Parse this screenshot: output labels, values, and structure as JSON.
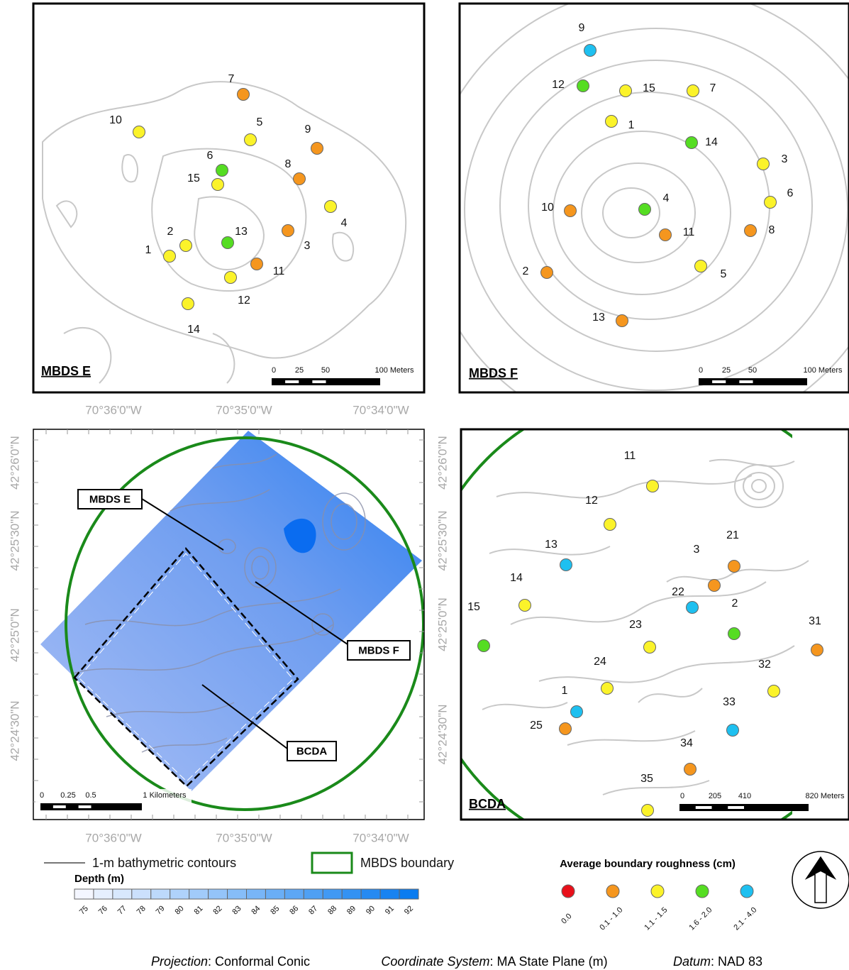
{
  "panels": [
    {
      "title": "MBDS E",
      "scale_labels": [
        "0",
        "25",
        "50",
        "100 Meters"
      ],
      "stations": [
        {
          "label": "7",
          "color": "#f5961e"
        },
        {
          "label": "10",
          "color": "#fbf32a"
        },
        {
          "label": "5",
          "color": "#fbf32a"
        },
        {
          "label": "9",
          "color": "#f5961e"
        },
        {
          "label": "6",
          "color": "#55dd22"
        },
        {
          "label": "15",
          "color": "#fbf32a"
        },
        {
          "label": "8",
          "color": "#f5961e"
        },
        {
          "label": "4",
          "color": "#fbf32a"
        },
        {
          "label": "2",
          "color": "#fbf32a"
        },
        {
          "label": "1",
          "color": "#fbf32a"
        },
        {
          "label": "13",
          "color": "#55dd22"
        },
        {
          "label": "3",
          "color": "#f5961e"
        },
        {
          "label": "11",
          "color": "#f5961e"
        },
        {
          "label": "12",
          "color": "#fbf32a"
        },
        {
          "label": "14",
          "color": "#fbf32a"
        }
      ]
    },
    {
      "title": "MBDS F",
      "scale_labels": [
        "0",
        "25",
        "50",
        "100 Meters"
      ],
      "stations": [
        {
          "label": "9",
          "color": "#1ec0f0"
        },
        {
          "label": "12",
          "color": "#55dd22"
        },
        {
          "label": "15",
          "color": "#fbf32a"
        },
        {
          "label": "7",
          "color": "#fbf32a"
        },
        {
          "label": "1",
          "color": "#fbf32a"
        },
        {
          "label": "14",
          "color": "#55dd22"
        },
        {
          "label": "3",
          "color": "#fbf32a"
        },
        {
          "label": "6",
          "color": "#fbf32a"
        },
        {
          "label": "10",
          "color": "#f5961e"
        },
        {
          "label": "4",
          "color": "#55dd22"
        },
        {
          "label": "11",
          "color": "#f5961e"
        },
        {
          "label": "8",
          "color": "#f5961e"
        },
        {
          "label": "2",
          "color": "#f5961e"
        },
        {
          "label": "5",
          "color": "#fbf32a"
        },
        {
          "label": "13",
          "color": "#f5961e"
        }
      ]
    },
    {
      "title": "BCDA",
      "scale_labels": [
        "0",
        "205",
        "410",
        "820 Meters"
      ],
      "stations": [
        {
          "label": "11",
          "color": "#fbf32a"
        },
        {
          "label": "12",
          "color": "#fbf32a"
        },
        {
          "label": "13",
          "color": "#1ec0f0"
        },
        {
          "label": "21",
          "color": "#f5961e"
        },
        {
          "label": "3",
          "color": "#f5961e"
        },
        {
          "label": "14",
          "color": "#fbf32a"
        },
        {
          "label": "22",
          "color": "#1ec0f0"
        },
        {
          "label": "2",
          "color": "#55dd22"
        },
        {
          "label": "15",
          "color": "#55dd22"
        },
        {
          "label": "23",
          "color": "#fbf32a"
        },
        {
          "label": "31",
          "color": "#f5961e"
        },
        {
          "label": "24",
          "color": "#fbf32a"
        },
        {
          "label": "32",
          "color": "#fbf32a"
        },
        {
          "label": "1",
          "color": "#1ec0f0"
        },
        {
          "label": "33",
          "color": "#1ec0f0"
        },
        {
          "label": "25",
          "color": "#f5961e"
        },
        {
          "label": "34",
          "color": "#f5961e"
        },
        {
          "label": "35",
          "color": "#fbf32a"
        }
      ]
    }
  ],
  "overview": {
    "x_labels": [
      "70°36'0\"W",
      "70°35'0\"W",
      "70°34'0\"W"
    ],
    "y_labels": [
      "42°26'0\"N",
      "42°25'30\"N",
      "42°25'0\"N",
      "42°24'30\"N"
    ],
    "callouts": [
      "MBDS E",
      "MBDS F",
      "BCDA"
    ],
    "scale_labels": [
      "0",
      "0.25",
      "0.5",
      "1 Kilometers"
    ]
  },
  "legend": {
    "contours": "1-m bathymetric contours",
    "boundary": "MBDS boundary",
    "depth_title": "Depth (m)",
    "depth_ticks": [
      75,
      76,
      77,
      78,
      79,
      80,
      81,
      82,
      83,
      84,
      85,
      86,
      87,
      88,
      89,
      90,
      91,
      92
    ],
    "roughness_title": "Average boundary roughness (cm)",
    "classes": [
      {
        "label": "0.0",
        "color": "#e8101a"
      },
      {
        "label": "0.1 - 1.0",
        "color": "#f5961e"
      },
      {
        "label": "1.1 - 1.5",
        "color": "#fbf32a"
      },
      {
        "label": "1.6 - 2.0",
        "color": "#55dd22"
      },
      {
        "label": "2.1 - 4.0",
        "color": "#1ec0f0"
      }
    ]
  },
  "footer": [
    {
      "key": "Projection",
      "value": "Conformal Conic"
    },
    {
      "key": "Coordinate System",
      "value": "MA State Plane (m)"
    },
    {
      "key": "Datum",
      "value": "NAD 83"
    }
  ]
}
